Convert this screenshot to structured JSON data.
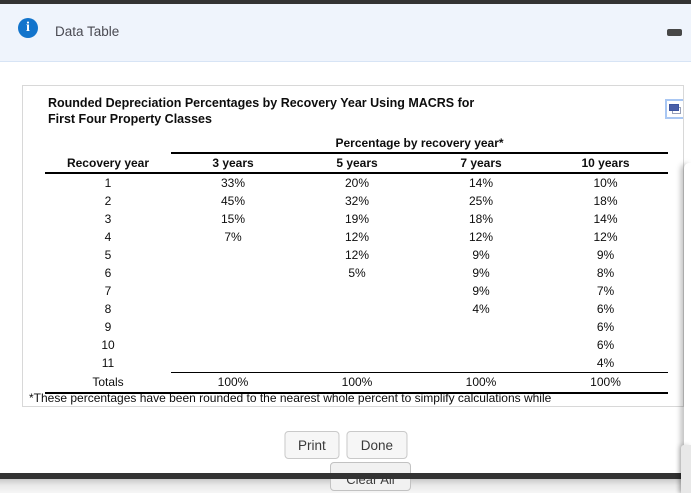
{
  "modal": {
    "header": {
      "title": "Data Table",
      "info_icon": "info-icon",
      "minimize_icon": "minimize-dash-icon"
    },
    "table_card": {
      "title": "Rounded Depreciation Percentages by Recovery Year Using MACRS for First Four Property Classes",
      "popout_icon": "open-in-new-window-icon",
      "span_header": "Percentage by recovery year*",
      "columns": [
        "Recovery year",
        "3 years",
        "5 years",
        "7 years",
        "10 years"
      ],
      "rows": [
        {
          "year": "1",
          "values": [
            "33%",
            "20%",
            "14%",
            "10%"
          ]
        },
        {
          "year": "2",
          "values": [
            "45%",
            "32%",
            "25%",
            "18%"
          ]
        },
        {
          "year": "3",
          "values": [
            "15%",
            "19%",
            "18%",
            "14%"
          ]
        },
        {
          "year": "4",
          "values": [
            "7%",
            "12%",
            "12%",
            "12%"
          ]
        },
        {
          "year": "5",
          "values": [
            "",
            "12%",
            "9%",
            "9%"
          ]
        },
        {
          "year": "6",
          "values": [
            "",
            "5%",
            "9%",
            "8%"
          ]
        },
        {
          "year": "7",
          "values": [
            "",
            "",
            "9%",
            "7%"
          ]
        },
        {
          "year": "8",
          "values": [
            "",
            "",
            "4%",
            "6%"
          ]
        },
        {
          "year": "9",
          "values": [
            "",
            "",
            "",
            "6%"
          ]
        },
        {
          "year": "10",
          "values": [
            "",
            "",
            "",
            "6%"
          ]
        },
        {
          "year": "11",
          "values": [
            "",
            "",
            "",
            "4%"
          ]
        }
      ],
      "totals": {
        "label": "Totals",
        "values": [
          "100%",
          "100%",
          "100%",
          "100%"
        ]
      },
      "footnote": "*These percentages have been rounded to the nearest whole percent to simplify calculations while"
    },
    "buttons": {
      "print": "Print",
      "done": "Done"
    }
  },
  "background_page": {
    "clear_all_label": "Clear All"
  },
  "colors": {
    "header_bg": "#eff4fc",
    "header_border": "#d7e4f5",
    "info_blue": "#1274cc",
    "bar_dark": "#333333",
    "card_border": "#d8d8d8",
    "popout_border": "#a9c7f3",
    "button_bg": "#f6f6f6",
    "button_border": "#c9c9c9"
  }
}
